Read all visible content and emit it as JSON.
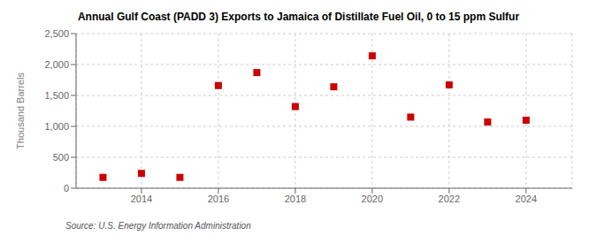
{
  "chart_data": {
    "type": "scatter",
    "title": "Annual Gulf Coast (PADD 3) Exports to Jamaica of Distillate Fuel Oil, 0 to 15 ppm Sulfur",
    "ylabel": "Thousand Barrels",
    "annotation": "Source: U.S. Energy Information Administration",
    "x": [
      2013,
      2014,
      2015,
      2016,
      2017,
      2018,
      2019,
      2020,
      2021,
      2022,
      2023,
      2024
    ],
    "values": [
      175,
      240,
      175,
      1660,
      1870,
      1320,
      1640,
      2140,
      1150,
      1670,
      1070,
      1100
    ],
    "color": "#cc0000",
    "marker": "square",
    "xlim": [
      2012.3,
      2025.2
    ],
    "xticks": [
      2014,
      2016,
      2018,
      2020,
      2022,
      2024
    ],
    "ylim": [
      0,
      2500
    ],
    "yticks": [
      0,
      500,
      {
        "value": 1000,
        "label": "1,000"
      },
      {
        "value": 1500,
        "label": "1,500"
      },
      {
        "value": 2000,
        "label": "2,000"
      },
      {
        "value": 2500,
        "label": "2,500"
      }
    ],
    "grid": true
  }
}
